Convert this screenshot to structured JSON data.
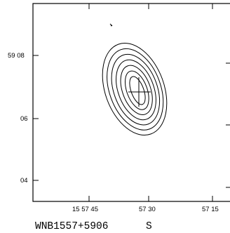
{
  "chart_data": {
    "type": "contour",
    "source_name": "WNB1557+5906",
    "band": "S",
    "x_ticks": [
      "15 57 45",
      "57 30",
      "57 15"
    ],
    "y_ticks": [
      "59 08",
      "06",
      "04"
    ],
    "center_marker": "cross",
    "contour_levels": 7,
    "grid": false
  }
}
